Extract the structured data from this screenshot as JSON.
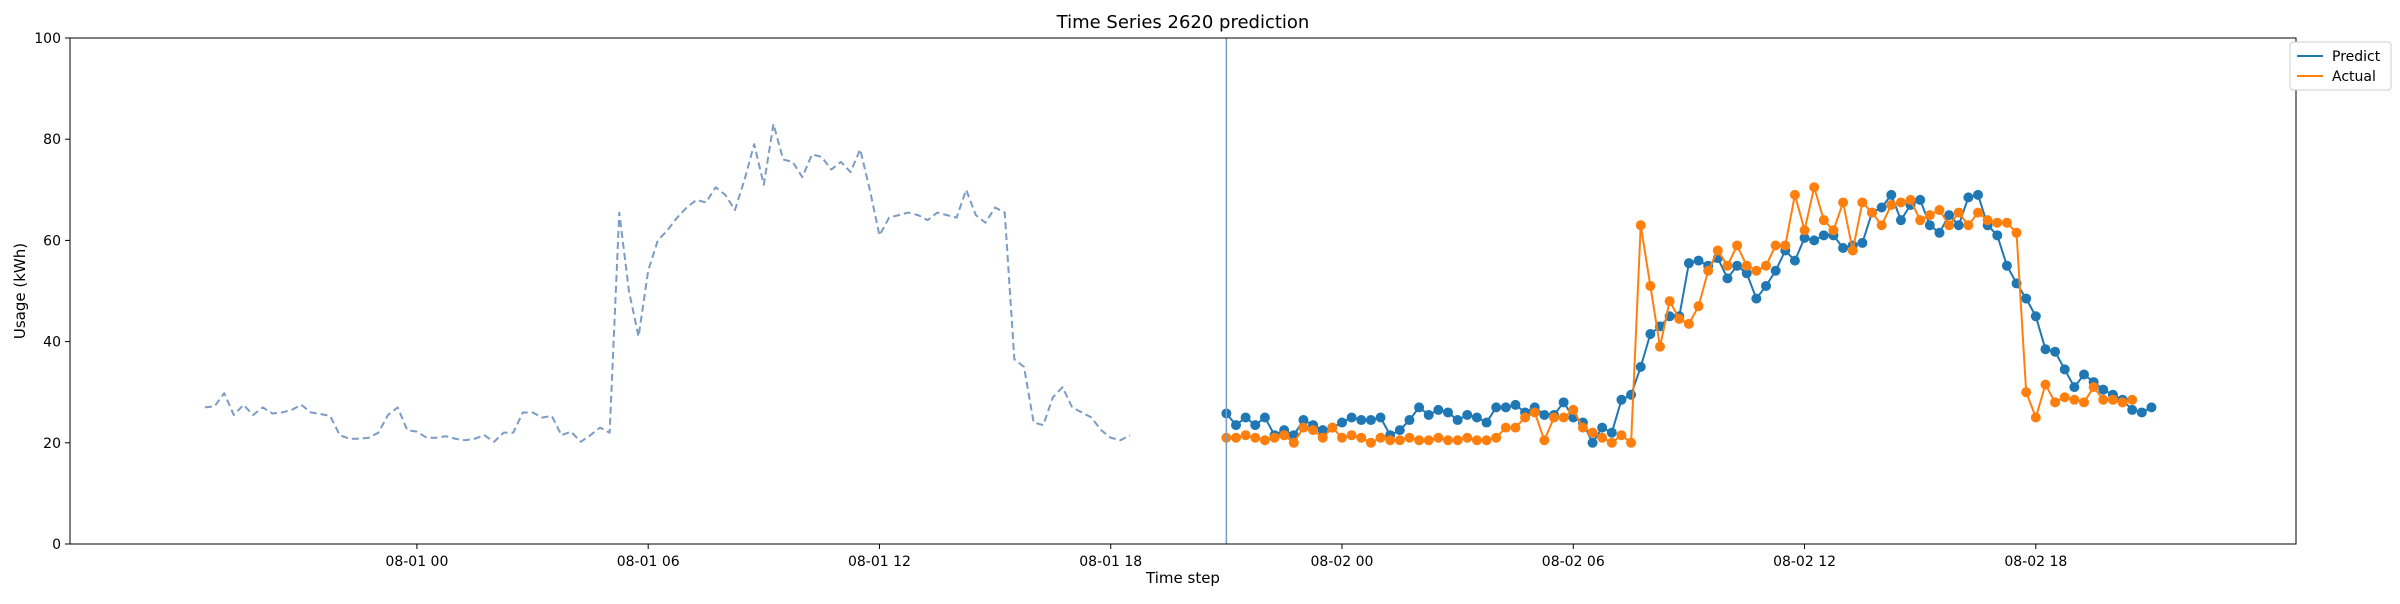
{
  "chart_data": {
    "type": "line",
    "title": "Time Series 2620 prediction",
    "xlabel": "Time step",
    "ylabel": "Usage (kWh)",
    "ylim": [
      0,
      100
    ],
    "yticks": [
      0,
      20,
      40,
      60,
      80,
      100
    ],
    "xlim": [
      "2024-07-31T15:00",
      "2024-08-03T00:45"
    ],
    "xticks": [
      {
        "t": "2024-08-01T00:00",
        "label": "08-01 00"
      },
      {
        "t": "2024-08-01T06:00",
        "label": "08-01 06"
      },
      {
        "t": "2024-08-01T12:00",
        "label": "08-01 12"
      },
      {
        "t": "2024-08-01T18:00",
        "label": "08-01 18"
      },
      {
        "t": "2024-08-02T00:00",
        "label": "08-02 00"
      },
      {
        "t": "2024-08-02T06:00",
        "label": "08-02 06"
      },
      {
        "t": "2024-08-02T12:00",
        "label": "08-02 12"
      },
      {
        "t": "2024-08-02T18:00",
        "label": "08-02 18"
      }
    ],
    "grid": false,
    "legend_position": "upper right, outside",
    "forecast_start": "2024-08-01T21:00",
    "series": [
      {
        "name": "",
        "color": "#7b9cc4",
        "style": "dashed",
        "start": "2024-07-31T18:30",
        "step_minutes": 15,
        "values": [
          27,
          27.2,
          29.8,
          25.5,
          27.5,
          25.5,
          27,
          25.8,
          26,
          26.5,
          27.5,
          26,
          25.7,
          25.3,
          21.5,
          20.8,
          20.8,
          21,
          22,
          25.5,
          27,
          22.5,
          22.2,
          21,
          21,
          21.3,
          20.8,
          20.5,
          20.8,
          21.5,
          20.2,
          22,
          22,
          26,
          26,
          25,
          25.3,
          21.5,
          22.2,
          20.2,
          21.5,
          23,
          22,
          65.5,
          50,
          41,
          54,
          60,
          62,
          64.5,
          66.5,
          68,
          67.5,
          70.5,
          69,
          66,
          72,
          79,
          71,
          83,
          76,
          75.5,
          72.5,
          77,
          76.5,
          74,
          75.5,
          73.5,
          78,
          70,
          61,
          64.5,
          65,
          65.5,
          65,
          64,
          65.5,
          65,
          64.5,
          70,
          65,
          63.5,
          66.5,
          65.5,
          36.5,
          35,
          24,
          23.5,
          29,
          31,
          27,
          26,
          25,
          22.5,
          21,
          20.5,
          21.5
        ]
      },
      {
        "name": "Predict",
        "color": "#1f77b4",
        "style": "solid-markers",
        "start": "2024-08-01T21:00",
        "step_minutes": 15,
        "values": [
          25.8,
          23.5,
          25,
          23.5,
          25,
          21.5,
          22.5,
          21.5,
          24.5,
          23.5,
          22.5,
          23,
          24,
          25,
          24.5,
          24.5,
          25,
          21.5,
          22.5,
          24.5,
          27,
          25.5,
          26.5,
          26,
          24.5,
          25.5,
          25,
          24,
          27,
          27,
          27.5,
          26,
          27,
          25.5,
          25.5,
          28,
          25,
          24,
          20,
          23,
          22,
          28.5,
          29.5,
          35,
          41.5,
          43,
          45,
          45,
          55.5,
          56,
          55,
          56.5,
          52.5,
          55,
          53.5,
          48.5,
          51,
          54,
          58,
          56,
          60.5,
          60,
          61,
          61,
          58.5,
          59,
          59.5,
          65.5,
          66.5,
          69,
          64,
          67,
          68,
          63,
          61.5,
          65,
          63,
          68.5,
          69,
          63,
          61,
          55,
          51.5,
          48.5,
          45,
          38.5,
          38,
          34.5,
          31,
          33.5,
          32,
          30.5,
          29.5,
          28.5,
          26.5,
          26,
          27
        ]
      },
      {
        "name": "Actual",
        "color": "#ff7f0e",
        "style": "solid-markers",
        "start": "2024-08-01T21:00",
        "step_minutes": 15,
        "values": [
          21,
          21,
          21.5,
          21,
          20.5,
          21,
          21.5,
          20,
          23,
          22.5,
          21,
          23,
          21,
          21.5,
          21,
          20,
          21,
          20.5,
          20.5,
          21,
          20.5,
          20.5,
          21,
          20.5,
          20.5,
          21,
          20.5,
          20.5,
          21,
          23,
          23,
          25,
          26,
          20.5,
          25,
          25,
          26.5,
          23,
          22,
          21,
          20,
          21.5,
          20,
          63,
          51,
          39,
          48,
          44.5,
          43.5,
          47,
          54,
          58,
          55,
          59,
          55,
          54,
          55,
          59,
          59,
          69,
          62,
          70.5,
          64,
          62,
          67.5,
          58,
          67.5,
          65.5,
          63,
          67,
          67.5,
          68,
          64,
          65,
          66,
          63,
          65.5,
          63,
          65.5,
          64,
          63.5,
          63.5,
          61.5,
          30,
          25,
          31.5,
          28,
          29,
          28.5,
          28,
          31,
          28.5,
          28.5,
          28,
          28.5
        ]
      }
    ]
  }
}
